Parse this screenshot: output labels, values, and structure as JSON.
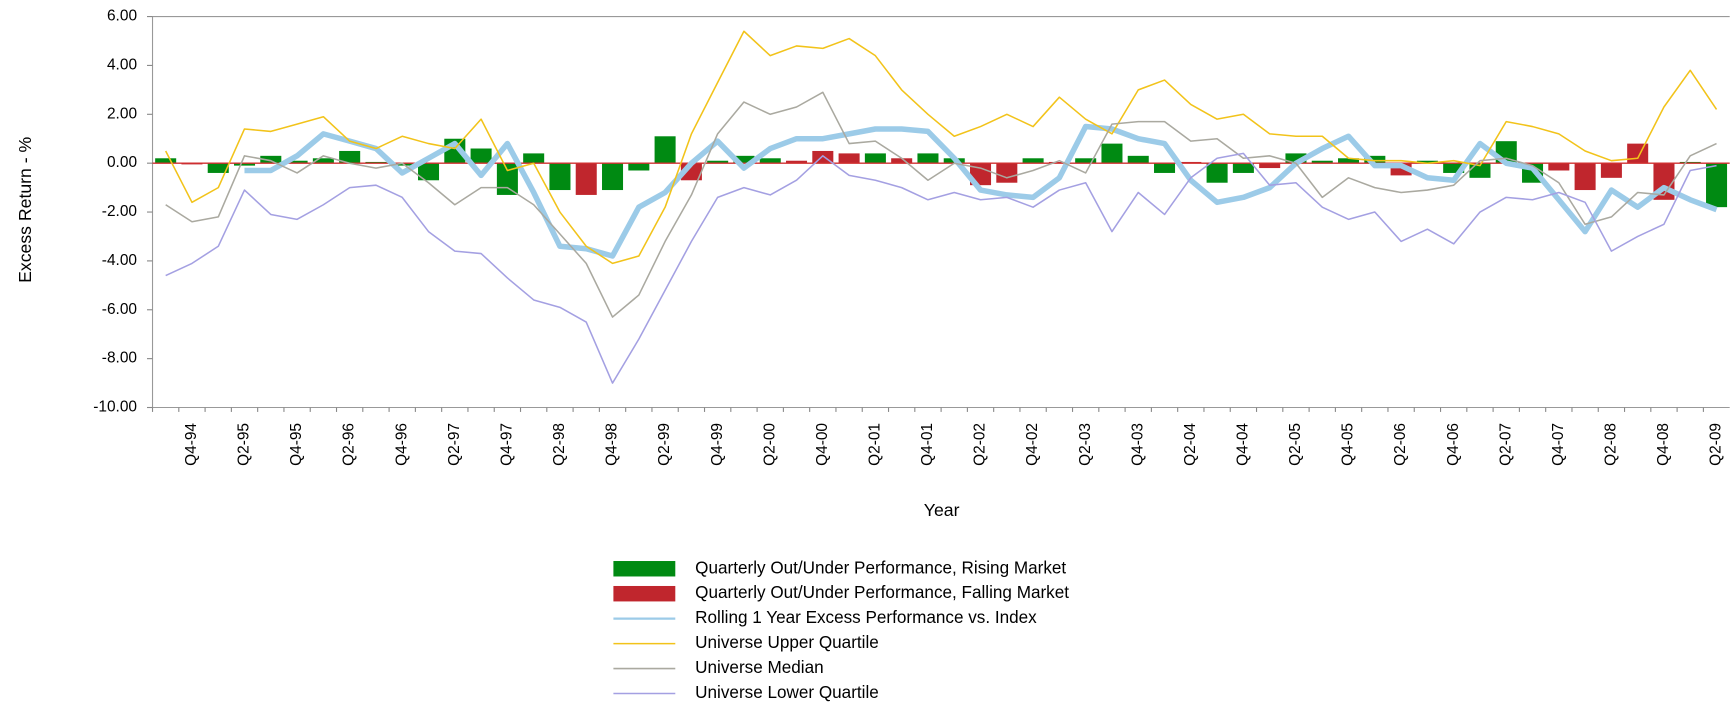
{
  "chart_data": {
    "type": "bar",
    "y_label": "Excess Return - %",
    "x_label": "Year",
    "categories": [
      null,
      "Q4-94",
      null,
      "Q2-95",
      null,
      "Q4-95",
      null,
      "Q2-96",
      null,
      "Q4-96",
      null,
      "Q2-97",
      null,
      "Q4-97",
      null,
      "Q2-98",
      null,
      "Q4-98",
      null,
      "Q2-99",
      null,
      "Q4-99",
      null,
      "Q2-00",
      null,
      "Q4-00",
      null,
      "Q2-01",
      null,
      "Q4-01",
      null,
      "Q2-02",
      null,
      "Q4-02",
      null,
      "Q2-03",
      null,
      "Q4-03",
      null,
      "Q2-04",
      null,
      "Q4-04",
      null,
      "Q2-05",
      null,
      "Q4-05",
      null,
      "Q2-06",
      null,
      "Q4-06",
      null,
      "Q2-07",
      null,
      "Q4-07",
      null,
      "Q2-08",
      null,
      "Q4-08",
      null,
      "Q2-09"
    ],
    "ylim": [
      -10,
      6
    ],
    "yticks": [
      {
        "value": 6,
        "label": "6.00"
      },
      {
        "value": 4,
        "label": "4.00"
      },
      {
        "value": 2,
        "label": "2.00"
      },
      {
        "value": 0,
        "label": "0.00"
      },
      {
        "value": -2,
        "label": "-2.00"
      },
      {
        "value": -4,
        "label": "-4.00"
      },
      {
        "value": -6,
        "label": "-6.00"
      },
      {
        "value": -8,
        "label": "-8.00"
      },
      {
        "value": -10,
        "label": "-10.00"
      }
    ],
    "legend": "bottom",
    "series": [
      {
        "name": "Quarterly Out/Under Performance, Rising Market",
        "type": "bar",
        "color": "#008a12",
        "values": [
          0.2,
          null,
          -0.4,
          -0.1,
          0.3,
          0.1,
          0.2,
          0.5,
          0.05,
          -0.1,
          -0.7,
          1.0,
          0.6,
          -1.3,
          0.4,
          -1.1,
          null,
          -1.1,
          -0.3,
          1.1,
          null,
          0.1,
          0.3,
          0.2,
          null,
          null,
          null,
          0.4,
          null,
          0.4,
          0.2,
          null,
          null,
          0.2,
          null,
          0.2,
          0.8,
          0.3,
          -0.4,
          null,
          -0.8,
          -0.4,
          null,
          0.4,
          0.1,
          0.2,
          0.3,
          null,
          0.1,
          -0.4,
          -0.6,
          0.9,
          -0.8,
          null,
          null,
          null,
          null,
          null,
          0.05,
          -1.8
        ]
      },
      {
        "name": "Quarterly Out/Under Performance, Falling Market",
        "type": "bar",
        "color": "#c0262d",
        "values": [
          null,
          -0.05,
          null,
          null,
          null,
          null,
          null,
          null,
          null,
          null,
          null,
          null,
          null,
          null,
          null,
          null,
          -1.3,
          null,
          null,
          null,
          -0.7,
          null,
          null,
          null,
          0.1,
          0.5,
          0.4,
          null,
          0.2,
          null,
          null,
          -0.9,
          -0.8,
          null,
          0.05,
          null,
          null,
          null,
          null,
          0.05,
          null,
          null,
          -0.2,
          null,
          null,
          null,
          null,
          -0.5,
          null,
          null,
          null,
          null,
          null,
          -0.3,
          -1.1,
          -0.6,
          0.8,
          -1.5,
          null,
          null
        ]
      },
      {
        "name": "Rolling 1 Year Excess Performance vs. Index",
        "type": "line",
        "color": "#9ccbe8",
        "values": [
          null,
          null,
          null,
          -0.3,
          -0.3,
          0.3,
          1.2,
          0.9,
          0.6,
          -0.4,
          0.2,
          0.8,
          -0.5,
          0.8,
          -1.2,
          -3.4,
          -3.5,
          -3.8,
          -1.8,
          -1.2,
          0,
          0.9,
          -0.2,
          0.6,
          1.0,
          1.0,
          1.2,
          1.4,
          1.4,
          1.3,
          0.2,
          -1.1,
          -1.3,
          -1.4,
          -0.6,
          1.5,
          1.4,
          1.0,
          0.8,
          -0.7,
          -1.6,
          -1.4,
          -1.0,
          0,
          0.6,
          1.1,
          -0.1,
          -0.1,
          -0.6,
          -0.7,
          0.8,
          0,
          -0.2,
          -1.5,
          -2.8,
          -1.1,
          -1.8,
          -1.0,
          -1.5,
          -1.9
        ]
      },
      {
        "name": "Universe Upper Quartile",
        "type": "line",
        "color": "#f2c31a",
        "values": [
          0.5,
          -1.6,
          -1.0,
          1.4,
          1.3,
          1.6,
          1.9,
          0.9,
          0.6,
          1.1,
          0.8,
          0.6,
          1.8,
          -0.3,
          0,
          -2.0,
          -3.4,
          -4.1,
          -3.8,
          -1.8,
          1.2,
          3.3,
          5.4,
          4.4,
          4.8,
          4.7,
          5.1,
          4.4,
          3.0,
          2.0,
          1.1,
          1.5,
          2.0,
          1.5,
          2.7,
          1.8,
          1.2,
          3.0,
          3.4,
          2.4,
          1.8,
          2.0,
          1.2,
          1.1,
          1.1,
          0.2,
          0.1,
          0.1,
          0,
          0.1,
          -0.1,
          1.7,
          1.5,
          1.2,
          0.5,
          0.1,
          0.2,
          2.3,
          3.8,
          2.2
        ]
      },
      {
        "name": "Universe Median",
        "type": "line",
        "color": "#aaa9a0",
        "values": [
          -1.7,
          -2.4,
          -2.2,
          0.3,
          0.1,
          -0.4,
          0.3,
          0,
          -0.2,
          0,
          -0.8,
          -1.7,
          -1.0,
          -1.0,
          -1.7,
          -2.9,
          -4.1,
          -6.3,
          -5.4,
          -3.2,
          -1.3,
          1.2,
          2.5,
          2.0,
          2.3,
          2.9,
          0.8,
          0.9,
          0.2,
          -0.7,
          0,
          -0.2,
          -0.6,
          -0.3,
          0.1,
          -0.4,
          1.6,
          1.7,
          1.7,
          0.9,
          1.0,
          0.2,
          0.3,
          0,
          -1.4,
          -0.6,
          -1.0,
          -1.2,
          -1.1,
          -0.9,
          0.1,
          0.2,
          -0.1,
          -0.8,
          -2.5,
          -2.2,
          -1.2,
          -1.3,
          0.3,
          0.8
        ]
      },
      {
        "name": "Universe Lower Quartile",
        "type": "line",
        "color": "#a4a0e2",
        "values": [
          -4.6,
          -4.1,
          -3.4,
          -1.1,
          -2.1,
          -2.3,
          -1.7,
          -1.0,
          -0.9,
          -1.4,
          -2.8,
          -3.6,
          -3.7,
          -4.7,
          -5.6,
          -5.9,
          -6.5,
          -9.0,
          -7.2,
          -5.2,
          -3.2,
          -1.4,
          -1.0,
          -1.3,
          -0.7,
          0.3,
          -0.5,
          -0.7,
          -1.0,
          -1.5,
          -1.2,
          -1.5,
          -1.4,
          -1.8,
          -1.1,
          -0.8,
          -2.8,
          -1.2,
          -2.1,
          -0.6,
          0.2,
          0.4,
          -0.9,
          -0.8,
          -1.8,
          -2.3,
          -2.0,
          -3.2,
          -2.7,
          -3.3,
          -2.0,
          -1.4,
          -1.5,
          -1.2,
          -1.6,
          -3.6,
          -3.0,
          -2.5,
          -0.3,
          -0.1
        ]
      }
    ]
  }
}
